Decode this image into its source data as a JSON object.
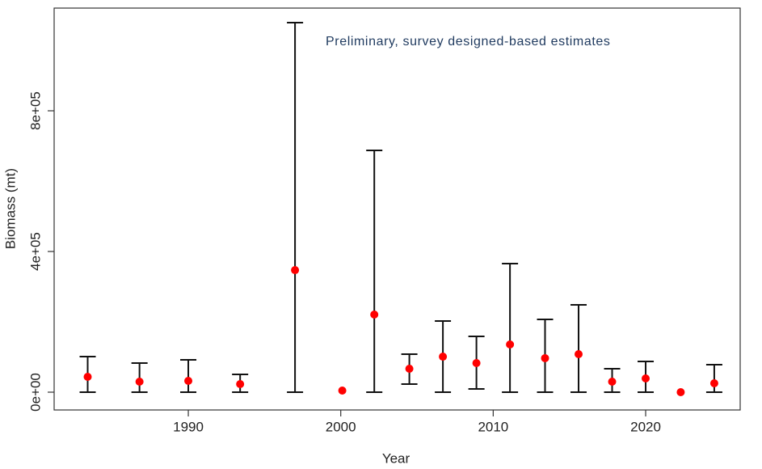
{
  "chart_data": {
    "type": "scatter",
    "x_label": "Year",
    "y_label": "Biomass (mt)",
    "annotation": "Preliminary, survey designed-based estimates",
    "x": [
      1983.4,
      1986.8,
      1990.0,
      1993.4,
      1997.0,
      2000.1,
      2002.2,
      2004.5,
      2006.7,
      2008.9,
      2011.1,
      2013.4,
      2015.6,
      2017.8,
      2020.0,
      2022.3,
      2024.5
    ],
    "series": [
      {
        "name": "Biomass",
        "color": "#ff0000",
        "values": [
          43700,
          29900,
          32200,
          23000,
          347000,
          4600,
          220700,
          66700,
          101000,
          82800,
          135600,
          96600,
          108000,
          29900,
          39100,
          0,
          25300
        ],
        "lower": [
          0,
          0,
          0,
          0,
          0,
          null,
          0,
          23000,
          0,
          9200,
          0,
          0,
          0,
          0,
          0,
          null,
          0
        ],
        "upper": [
          101000,
          82800,
          92000,
          50600,
          1050600,
          null,
          687400,
          108000,
          202300,
          158600,
          365500,
          206900,
          248300,
          66700,
          87400,
          null,
          78200
        ]
      }
    ],
    "xlim": [
      1981.2,
      2026.2
    ],
    "xticks": [
      1990,
      2000,
      2010,
      2020
    ],
    "ylim": [
      -50600,
      1092000
    ],
    "yticks": [
      {
        "value": 0,
        "label": "0e+00"
      },
      {
        "value": 400000,
        "label": "4e+05"
      },
      {
        "value": 800000,
        "label": "8e+05"
      }
    ]
  }
}
